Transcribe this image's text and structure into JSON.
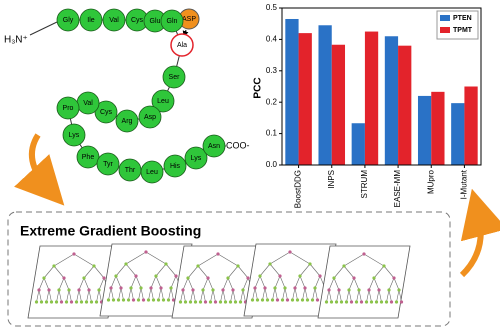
{
  "diagram": {
    "n_terminus": "H₃N⁺",
    "c_terminus": "COO-",
    "mutant": "ASP",
    "residues": [
      "Gly",
      "Ile",
      "Val",
      "Cys",
      "Glu",
      "Gln",
      "Ala",
      "Ser",
      "Leu",
      "Asp",
      "Arg",
      "Cys",
      "Val",
      "Pro",
      "Lys",
      "Phe",
      "Tyr",
      "Thr",
      "Leu",
      "His",
      "Lys",
      "Asn"
    ],
    "model_title": "Extreme Gradient Boosting"
  },
  "chart_data": {
    "type": "bar",
    "y_label": "PCC",
    "categories": [
      "BoostDDG",
      "INPS",
      "STRUM",
      "EASE-MM",
      "MUpro",
      "I-Mutant"
    ],
    "series": [
      {
        "name": "PTEN",
        "color": "#2a72c6",
        "values": [
          0.465,
          0.445,
          0.133,
          0.41,
          0.22,
          0.197
        ]
      },
      {
        "name": "TPMT",
        "color": "#e3232b",
        "values": [
          0.42,
          0.383,
          0.425,
          0.38,
          0.233,
          0.25
        ]
      }
    ],
    "ylim": [
      0,
      0.5
    ],
    "yticks": [
      {
        "value": 0,
        "label": "0.0"
      },
      0.1,
      0.2,
      0.3,
      0.4,
      0.5
    ],
    "legend": "upper right"
  }
}
